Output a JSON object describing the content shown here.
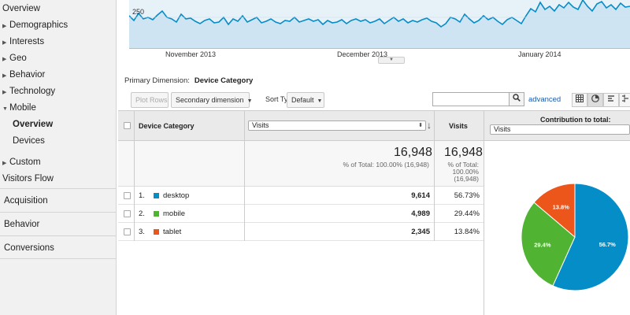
{
  "sidebar": {
    "items": [
      {
        "label": "Overview",
        "arrow": ""
      },
      {
        "label": "Demographics",
        "arrow": "▶"
      },
      {
        "label": "Interests",
        "arrow": "▶"
      },
      {
        "label": "Geo",
        "arrow": "▶"
      },
      {
        "label": "Behavior",
        "arrow": "▶"
      },
      {
        "label": "Technology",
        "arrow": "▶"
      },
      {
        "label": "Mobile",
        "arrow": "▼"
      }
    ],
    "subitems": [
      "Overview",
      "Devices"
    ],
    "after": [
      {
        "label": "Custom",
        "arrow": "▶"
      },
      {
        "label": "Visitors Flow",
        "arrow": ""
      }
    ],
    "sections": [
      "Acquisition",
      "Behavior",
      "Conversions"
    ]
  },
  "chart": {
    "y_label": "250",
    "x_labels": [
      "November 2013",
      "December 2013",
      "January 2014"
    ],
    "line_color": "#058dc7",
    "fill_color": "#e7f1f8"
  },
  "primary_dimension": {
    "label": "Primary Dimension:",
    "value": "Device Category"
  },
  "toolbar": {
    "plot_rows": "Plot Rows",
    "secondary_dimension": "Secondary dimension",
    "sort_type_label": "Sort Type:",
    "sort_type_value": "Default",
    "search_placeholder": "",
    "advanced": "advanced"
  },
  "table": {
    "header": {
      "device_category": "Device Category",
      "metric_select": "Visits",
      "visits": "Visits",
      "contribution": "Contribution to total:",
      "contribution_select": "Visits"
    },
    "totals": {
      "value": "16,948",
      "pct_line": "% of Total: 100.00% (16,948)",
      "visits_value": "16,948",
      "visits_pct_1": "% of Total:",
      "visits_pct_2": "100.00%",
      "visits_pct_3": "(16,948)"
    },
    "rows": [
      {
        "num": "1.",
        "name": "desktop",
        "value": "9,614",
        "pct": "56.73%",
        "color": "#058dc7"
      },
      {
        "num": "2.",
        "name": "mobile",
        "value": "4,989",
        "pct": "29.44%",
        "color": "#50b432"
      },
      {
        "num": "3.",
        "name": "tablet",
        "value": "2,345",
        "pct": "13.84%",
        "color": "#ed561b"
      }
    ]
  },
  "chart_data": {
    "type": "pie",
    "categories": [
      "desktop",
      "mobile",
      "tablet"
    ],
    "values": [
      56.7,
      29.4,
      13.8
    ],
    "slice_labels": [
      "56.7%",
      "29.4%",
      "13.8%"
    ],
    "colors": [
      "#058dc7",
      "#50b432",
      "#ed561b"
    ]
  }
}
